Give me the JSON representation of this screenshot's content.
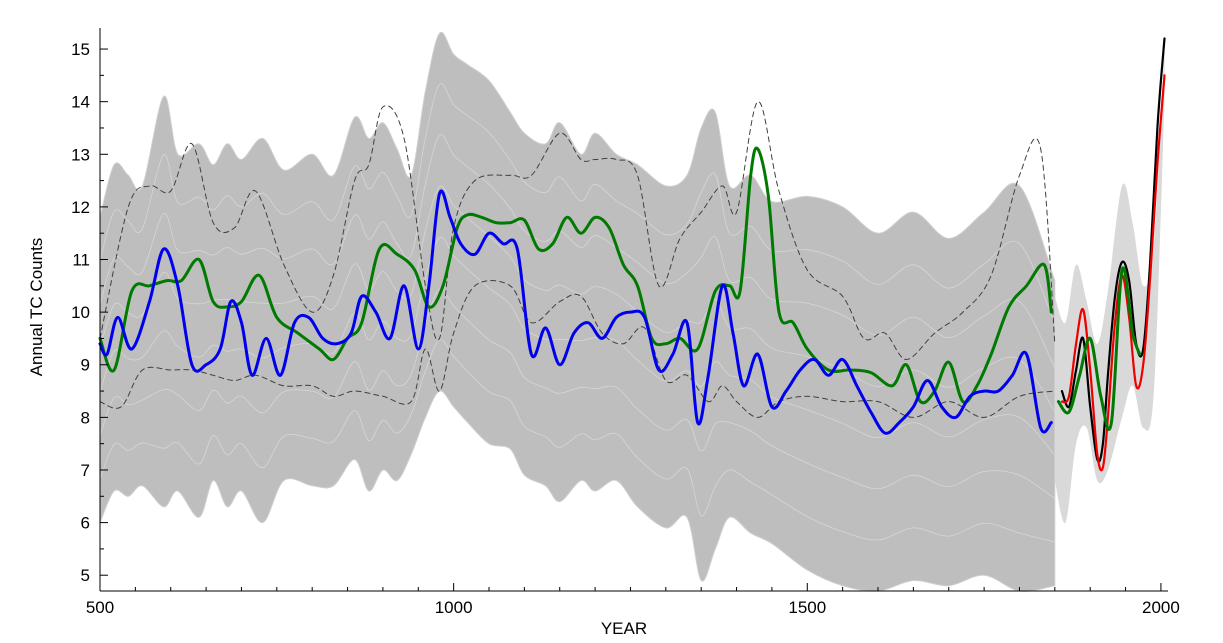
{
  "chart_data": {
    "type": "line",
    "title": "",
    "xlabel": "YEAR",
    "ylabel": "Annual TC Counts",
    "xlim": [
      500,
      2010
    ],
    "ylim": [
      4.7,
      15.4
    ],
    "xticks": [
      500,
      1000,
      1500,
      2000
    ],
    "yticks": [
      5,
      6,
      7,
      8,
      9,
      10,
      11,
      12,
      13,
      14,
      15
    ],
    "grid": false,
    "legend": "none",
    "colors": {
      "ensemble": "#bebebe",
      "ensemble_late": "#d9d9d9",
      "dashed_bounds": "#404040",
      "blue": "#0000ee",
      "green": "#007a00",
      "black": "#000000",
      "red": "#ee0000",
      "axis": "#000000"
    },
    "ensemble_envelope": {
      "x": [
        500,
        520,
        540,
        560,
        590,
        610,
        640,
        660,
        680,
        700,
        730,
        760,
        800,
        830,
        860,
        880,
        900,
        920,
        940,
        960,
        980,
        1000,
        1020,
        1050,
        1080,
        1100,
        1130,
        1150,
        1180,
        1200,
        1230,
        1260,
        1300,
        1330,
        1350,
        1370,
        1390,
        1420,
        1450,
        1500,
        1550,
        1600,
        1650,
        1700,
        1750,
        1800,
        1850
      ],
      "upper": [
        11.8,
        12.8,
        12.6,
        12.4,
        14.1,
        13.0,
        13.2,
        12.8,
        13.2,
        12.9,
        13.3,
        12.7,
        13.0,
        12.6,
        13.7,
        13.3,
        13.6,
        13.1,
        12.6,
        14.2,
        15.3,
        14.9,
        14.7,
        14.4,
        13.8,
        13.4,
        13.2,
        13.6,
        13.0,
        13.4,
        13.0,
        12.8,
        12.4,
        12.6,
        13.5,
        13.8,
        12.4,
        12.6,
        12.1,
        12.2,
        12.0,
        11.5,
        11.9,
        11.4,
        11.9,
        12.4,
        10.6
      ],
      "lower": [
        6.0,
        6.6,
        6.5,
        6.7,
        6.3,
        6.6,
        6.1,
        6.8,
        6.3,
        6.6,
        6.0,
        6.8,
        6.7,
        6.7,
        7.2,
        6.6,
        7.0,
        6.8,
        7.3,
        8.0,
        8.5,
        8.2,
        7.9,
        7.5,
        7.4,
        6.9,
        6.7,
        6.4,
        6.8,
        6.6,
        6.8,
        6.3,
        5.9,
        6.1,
        4.9,
        5.5,
        6.1,
        5.8,
        5.6,
        5.1,
        4.8,
        4.7,
        4.9,
        4.8,
        5.0,
        4.7,
        4.8
      ]
    },
    "late_envelope": {
      "x": [
        1850,
        1865,
        1880,
        1895,
        1910,
        1925,
        1945,
        1960,
        1975,
        1990,
        2005
      ],
      "upper": [
        10.3,
        9.8,
        10.9,
        10.2,
        9.4,
        10.4,
        12.4,
        11.7,
        10.5,
        11.3,
        15.0
      ],
      "lower": [
        6.8,
        6.0,
        7.5,
        7.8,
        6.8,
        7.0,
        8.0,
        8.6,
        7.8,
        8.5,
        14.0
      ]
    },
    "series": [
      {
        "key": "upper_dashed",
        "style": "dashed",
        "x": [
          500,
          540,
          570,
          600,
          630,
          660,
          690,
          720,
          760,
          800,
          830,
          860,
          880,
          900,
          930,
          960,
          980,
          1000,
          1030,
          1080,
          1110,
          1150,
          1180,
          1200,
          1230,
          1260,
          1290,
          1320,
          1350,
          1380,
          1400,
          1430,
          1460,
          1500,
          1550,
          1580,
          1610,
          1640,
          1680,
          1720,
          1760,
          1800,
          1830,
          1850
        ],
        "y": [
          9.5,
          12.0,
          12.4,
          12.3,
          13.2,
          11.7,
          11.6,
          12.3,
          10.9,
          10.0,
          10.7,
          12.5,
          12.8,
          13.9,
          13.3,
          10.5,
          9.5,
          11.6,
          12.5,
          12.6,
          12.6,
          13.4,
          12.9,
          12.9,
          12.9,
          12.6,
          10.5,
          11.4,
          11.9,
          12.4,
          11.9,
          14.0,
          12.3,
          10.8,
          10.3,
          9.5,
          9.6,
          9.1,
          9.6,
          10.0,
          10.7,
          12.6,
          13.1,
          9.4
        ]
      },
      {
        "key": "lower_dashed",
        "style": "dashed",
        "x": [
          500,
          530,
          560,
          600,
          630,
          660,
          690,
          720,
          760,
          800,
          830,
          860,
          900,
          940,
          960,
          980,
          1000,
          1030,
          1080,
          1110,
          1150,
          1180,
          1210,
          1240,
          1270,
          1300,
          1330,
          1360,
          1380,
          1400,
          1430,
          1460,
          1500,
          1550,
          1600,
          1650,
          1700,
          1750,
          1800,
          1850
        ],
        "y": [
          8.3,
          8.2,
          8.9,
          8.9,
          8.9,
          8.8,
          8.7,
          8.8,
          8.6,
          8.6,
          8.4,
          8.5,
          8.4,
          8.3,
          9.3,
          8.5,
          9.6,
          10.5,
          10.5,
          9.8,
          10.2,
          10.3,
          9.6,
          9.4,
          9.7,
          8.7,
          8.8,
          8.3,
          8.6,
          8.3,
          8.0,
          8.3,
          8.4,
          8.3,
          8.3,
          8.0,
          8.3,
          8.0,
          8.4,
          8.5
        ]
      },
      {
        "key": "green_reconstruction",
        "style": "solid",
        "x": [
          500,
          520,
          545,
          570,
          595,
          615,
          640,
          660,
          680,
          700,
          725,
          750,
          780,
          810,
          830,
          850,
          870,
          895,
          920,
          945,
          965,
          985,
          1005,
          1020,
          1040,
          1060,
          1080,
          1100,
          1120,
          1140,
          1160,
          1180,
          1200,
          1220,
          1240,
          1260,
          1280,
          1300,
          1320,
          1345,
          1370,
          1390,
          1405,
          1420,
          1430,
          1445,
          1460,
          1480,
          1500,
          1530,
          1560,
          1590,
          1620,
          1640,
          1660,
          1680,
          1700,
          1720,
          1740,
          1760,
          1785,
          1810,
          1835,
          1845
        ],
        "y": [
          9.5,
          8.9,
          10.4,
          10.5,
          10.6,
          10.6,
          11.0,
          10.2,
          10.1,
          10.2,
          10.7,
          9.9,
          9.6,
          9.3,
          9.1,
          9.5,
          9.8,
          11.2,
          11.1,
          10.8,
          10.1,
          10.5,
          11.6,
          11.85,
          11.8,
          11.7,
          11.7,
          11.75,
          11.2,
          11.3,
          11.8,
          11.5,
          11.8,
          11.6,
          10.9,
          10.5,
          9.5,
          9.4,
          9.5,
          9.3,
          10.4,
          10.5,
          10.4,
          12.6,
          13.1,
          12.2,
          10.0,
          9.8,
          9.3,
          8.9,
          8.9,
          8.85,
          8.6,
          9.0,
          8.3,
          8.5,
          9.05,
          8.3,
          8.6,
          9.2,
          10.1,
          10.5,
          10.9,
          10.0
        ]
      },
      {
        "key": "blue_reconstruction",
        "style": "solid",
        "x": [
          500,
          510,
          525,
          545,
          570,
          590,
          610,
          630,
          650,
          670,
          685,
          700,
          715,
          735,
          755,
          775,
          795,
          815,
          835,
          855,
          870,
          890,
          910,
          930,
          950,
          965,
          980,
          995,
          1010,
          1030,
          1050,
          1070,
          1090,
          1110,
          1130,
          1150,
          1170,
          1190,
          1210,
          1230,
          1250,
          1270,
          1290,
          1310,
          1330,
          1345,
          1360,
          1380,
          1395,
          1410,
          1430,
          1450,
          1470,
          1490,
          1510,
          1530,
          1550,
          1570,
          1590,
          1610,
          1630,
          1650,
          1670,
          1690,
          1710,
          1730,
          1750,
          1770,
          1790,
          1810,
          1830,
          1845
        ],
        "y": [
          9.4,
          9.2,
          9.9,
          9.3,
          10.2,
          11.2,
          10.5,
          9.0,
          9.0,
          9.3,
          10.2,
          9.8,
          8.8,
          9.5,
          8.8,
          9.8,
          9.9,
          9.5,
          9.4,
          9.6,
          10.3,
          10.0,
          9.5,
          10.5,
          9.3,
          10.5,
          12.25,
          11.8,
          11.3,
          11.1,
          11.5,
          11.3,
          11.2,
          9.2,
          9.7,
          9.0,
          9.6,
          9.8,
          9.5,
          9.9,
          10.0,
          9.9,
          8.9,
          9.2,
          9.8,
          7.9,
          8.8,
          10.5,
          9.6,
          8.6,
          9.2,
          8.2,
          8.5,
          8.9,
          9.1,
          8.8,
          9.1,
          8.6,
          8.1,
          7.7,
          7.9,
          8.2,
          8.7,
          8.2,
          8.0,
          8.4,
          8.5,
          8.5,
          8.8,
          9.2,
          7.8,
          7.9
        ]
      },
      {
        "key": "black_observed",
        "style": "solid",
        "x": [
          1860,
          1870,
          1880,
          1890,
          1900,
          1910,
          1918,
          1925,
          1935,
          1945,
          1955,
          1965,
          1975,
          1985,
          1995,
          2005
        ],
        "y": [
          8.5,
          8.2,
          8.9,
          9.5,
          8.2,
          7.2,
          7.5,
          8.8,
          10.3,
          10.95,
          10.6,
          9.4,
          9.3,
          11.0,
          13.5,
          15.2
        ]
      },
      {
        "key": "red_observed",
        "style": "solid",
        "x": [
          1860,
          1870,
          1880,
          1890,
          1900,
          1910,
          1918,
          1925,
          1935,
          1945,
          1955,
          1965,
          1975,
          1985,
          1995,
          2005
        ],
        "y": [
          8.3,
          8.4,
          9.4,
          10.05,
          8.9,
          7.3,
          7.05,
          8.0,
          9.8,
          10.7,
          9.9,
          8.6,
          9.0,
          10.7,
          12.8,
          14.5
        ]
      },
      {
        "key": "green_recent",
        "style": "solid",
        "x": [
          1855,
          1870,
          1885,
          1900,
          1915,
          1930,
          1945,
          1960,
          1970
        ],
        "y": [
          8.3,
          8.1,
          8.8,
          9.5,
          8.4,
          7.9,
          10.8,
          9.6,
          9.2
        ]
      }
    ]
  }
}
